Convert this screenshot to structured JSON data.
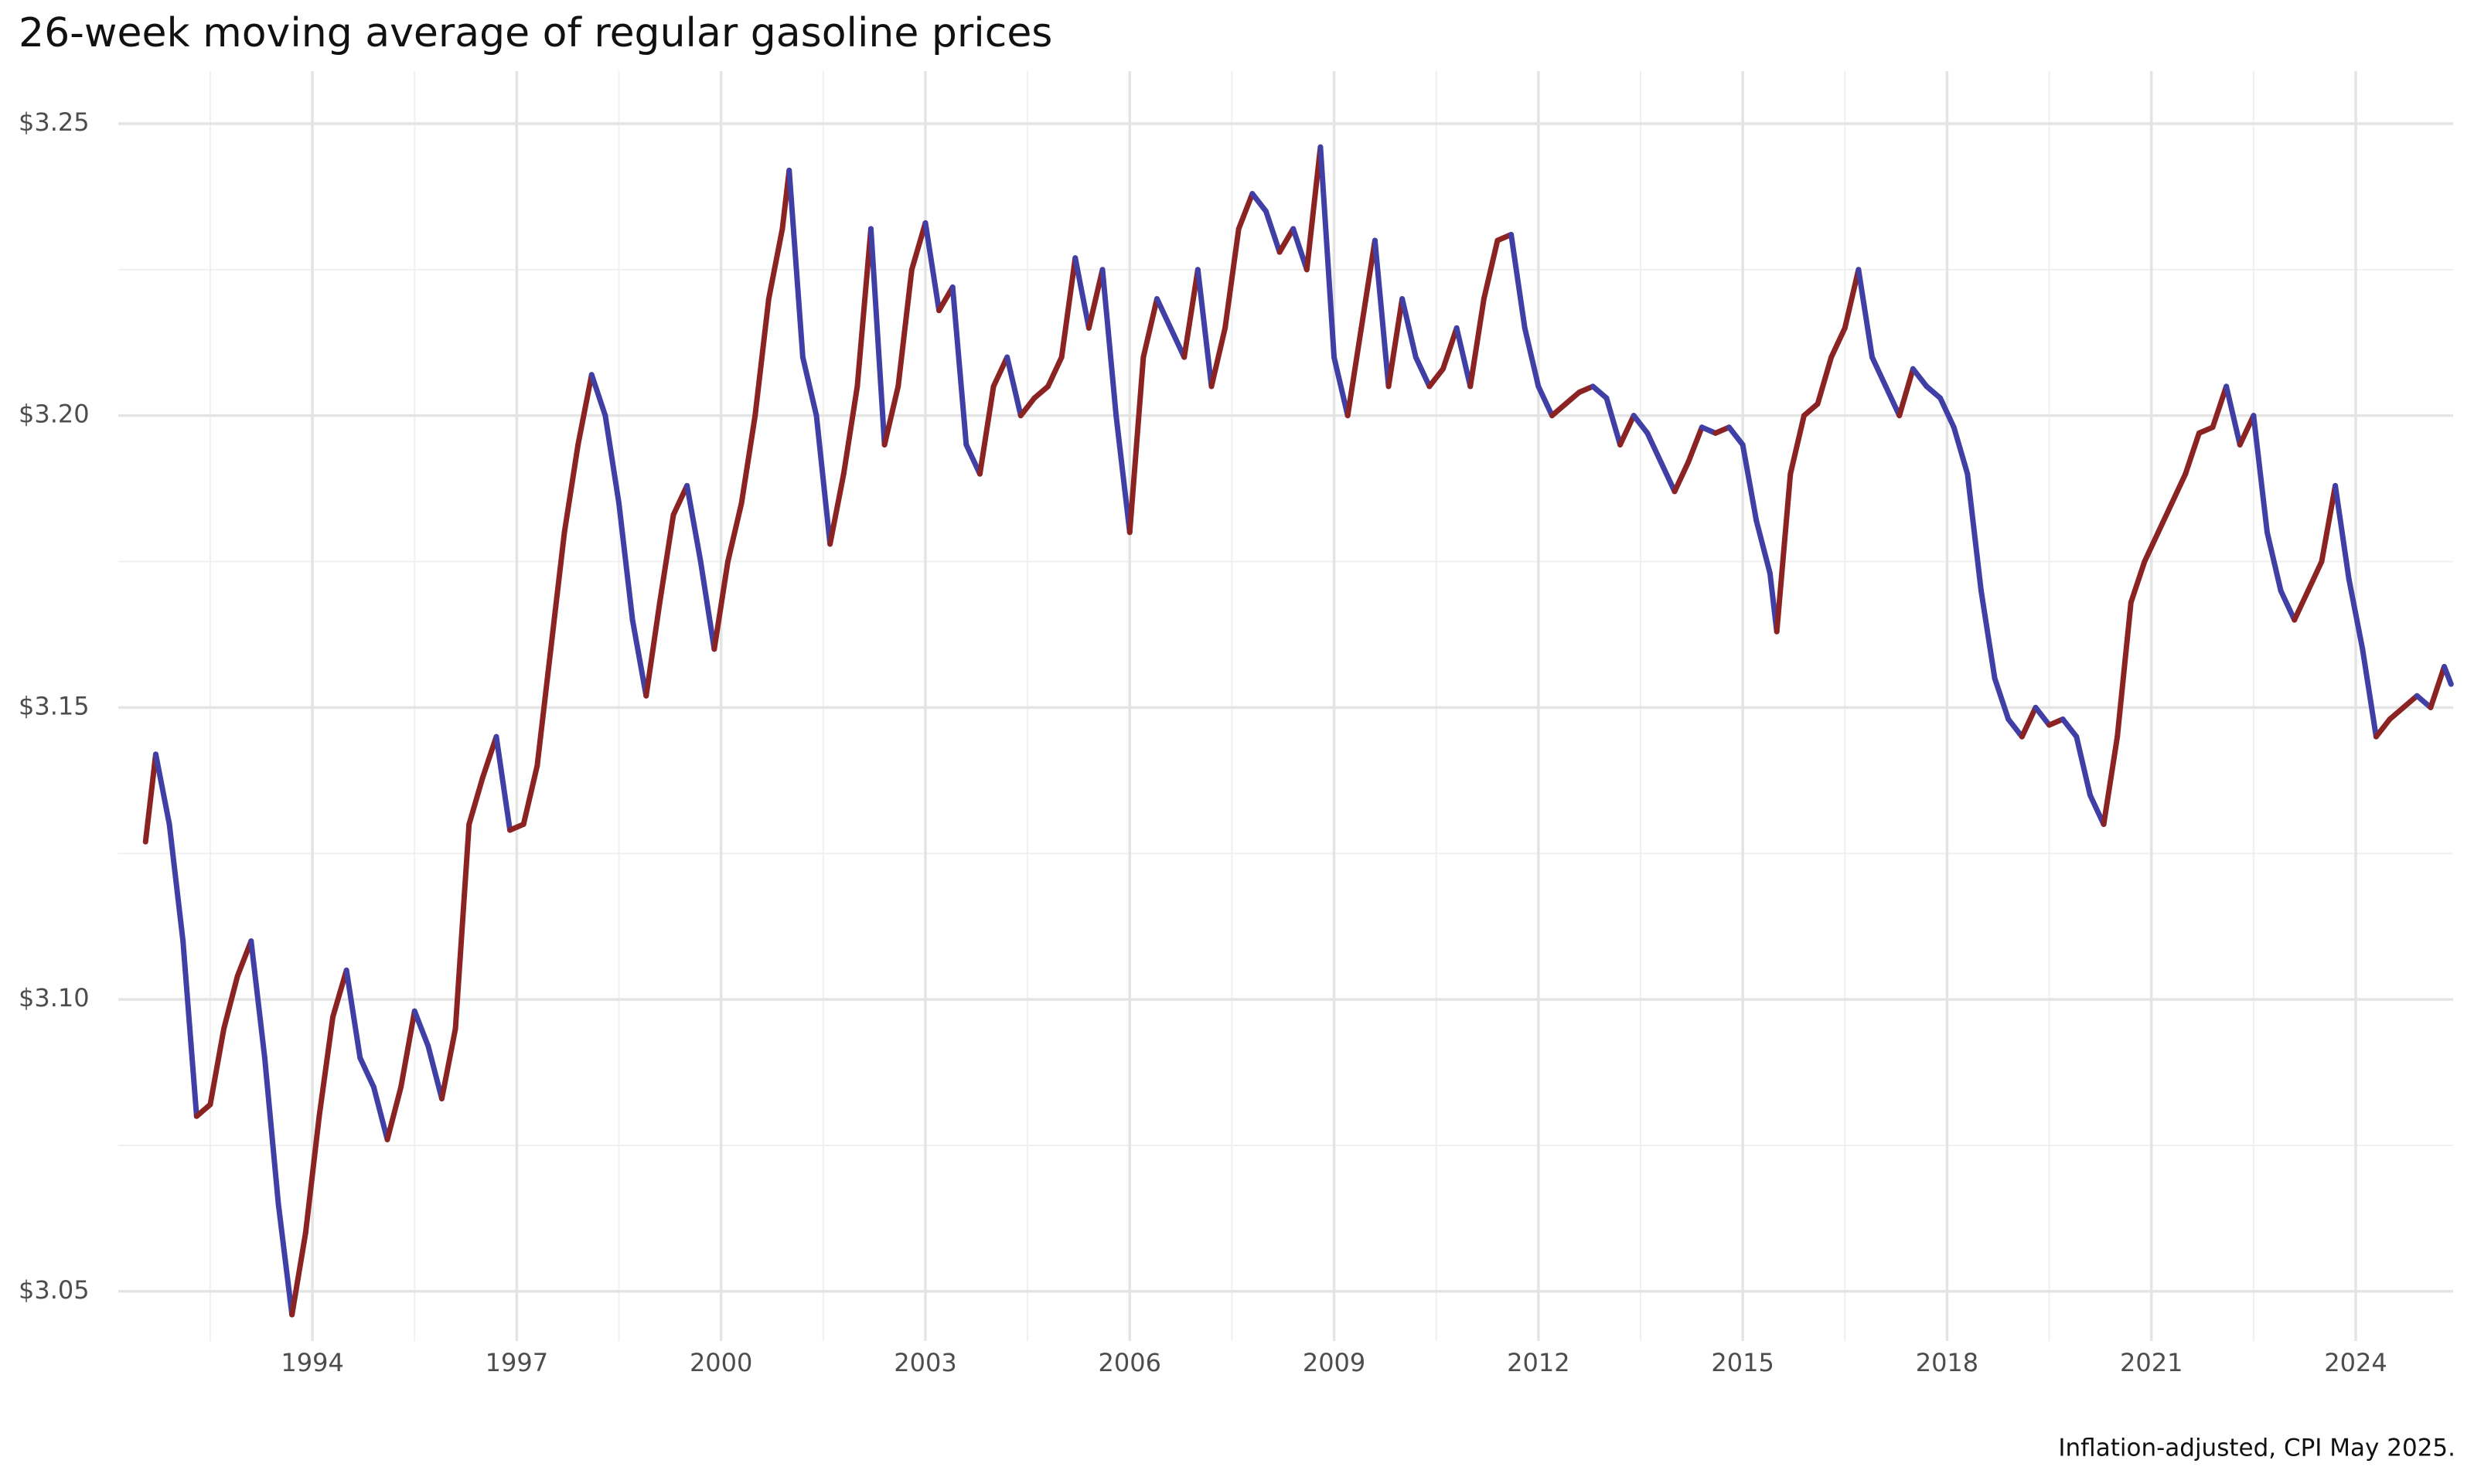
{
  "chart_data": {
    "type": "line",
    "title": "26-week moving average of regular gasoline prices",
    "caption": "Inflation-adjusted, CPI May 2025.",
    "colors": {
      "rising": "#8b2323",
      "falling": "#3f3fa6"
    },
    "grid": true,
    "xlim": [
      1991.15,
      2025.43
    ],
    "xticks": [
      1994,
      1997,
      2000,
      2003,
      2006,
      2009,
      2012,
      2015,
      2018,
      2021,
      2024
    ],
    "ylim": [
      3.0415,
      3.259
    ],
    "yticks": [
      {
        "value": 3.05,
        "label": "$3.05"
      },
      {
        "value": 3.1,
        "label": "$3.10"
      },
      {
        "value": 3.15,
        "label": "$3.15"
      },
      {
        "value": 3.2,
        "label": "$3.20"
      },
      {
        "value": 3.25,
        "label": "$3.25"
      }
    ],
    "x": [
      1991.55,
      1991.7,
      1991.9,
      1992.1,
      1992.3,
      1992.5,
      1992.7,
      1992.9,
      1993.1,
      1993.3,
      1993.5,
      1993.7,
      1993.9,
      1994.1,
      1994.3,
      1994.5,
      1994.7,
      1994.9,
      1995.1,
      1995.3,
      1995.5,
      1995.7,
      1995.9,
      1996.1,
      1996.3,
      1996.5,
      1996.7,
      1996.9,
      1997.1,
      1997.3,
      1997.5,
      1997.7,
      1997.9,
      1998.1,
      1998.3,
      1998.5,
      1998.7,
      1998.9,
      1999.1,
      1999.3,
      1999.5,
      1999.7,
      1999.9,
      2000.1,
      2000.3,
      2000.5,
      2000.7,
      2000.9,
      2001.0,
      2001.2,
      2001.4,
      2001.6,
      2001.8,
      2002.0,
      2002.2,
      2002.4,
      2002.6,
      2002.8,
      2003.0,
      2003.2,
      2003.4,
      2003.6,
      2003.8,
      2004.0,
      2004.2,
      2004.4,
      2004.6,
      2004.8,
      2005.0,
      2005.2,
      2005.4,
      2005.6,
      2005.8,
      2006.0,
      2006.2,
      2006.4,
      2006.6,
      2006.8,
      2007.0,
      2007.2,
      2007.4,
      2007.6,
      2007.8,
      2008.0,
      2008.2,
      2008.4,
      2008.6,
      2008.8,
      2009.0,
      2009.2,
      2009.4,
      2009.6,
      2009.8,
      2010.0,
      2010.2,
      2010.4,
      2010.6,
      2010.8,
      2011.0,
      2011.2,
      2011.4,
      2011.6,
      2011.8,
      2012.0,
      2012.2,
      2012.4,
      2012.6,
      2012.8,
      2013.0,
      2013.2,
      2013.4,
      2013.6,
      2013.8,
      2014.0,
      2014.2,
      2014.4,
      2014.6,
      2014.8,
      2015.0,
      2015.2,
      2015.4,
      2015.5,
      2015.7,
      2015.9,
      2016.1,
      2016.3,
      2016.5,
      2016.7,
      2016.9,
      2017.1,
      2017.3,
      2017.5,
      2017.7,
      2017.9,
      2018.1,
      2018.3,
      2018.5,
      2018.7,
      2018.9,
      2019.1,
      2019.3,
      2019.5,
      2019.7,
      2019.9,
      2020.1,
      2020.3,
      2020.5,
      2020.7,
      2020.9,
      2021.1,
      2021.3,
      2021.5,
      2021.7,
      2021.9,
      2022.1,
      2022.3,
      2022.5,
      2022.7,
      2022.9,
      2023.1,
      2023.3,
      2023.5,
      2023.7,
      2023.9,
      2024.1,
      2024.3,
      2024.5,
      2024.7,
      2024.9,
      2025.1,
      2025.3,
      2025.4
    ],
    "values": [
      3.127,
      3.142,
      3.13,
      3.11,
      3.08,
      3.082,
      3.095,
      3.104,
      3.11,
      3.09,
      3.065,
      3.046,
      3.06,
      3.08,
      3.097,
      3.105,
      3.09,
      3.085,
      3.076,
      3.085,
      3.098,
      3.092,
      3.083,
      3.095,
      3.13,
      3.138,
      3.145,
      3.129,
      3.13,
      3.14,
      3.16,
      3.18,
      3.195,
      3.207,
      3.2,
      3.185,
      3.165,
      3.152,
      3.168,
      3.183,
      3.188,
      3.175,
      3.16,
      3.175,
      3.185,
      3.2,
      3.22,
      3.232,
      3.242,
      3.21,
      3.2,
      3.178,
      3.19,
      3.205,
      3.232,
      3.195,
      3.205,
      3.225,
      3.233,
      3.218,
      3.222,
      3.195,
      3.19,
      3.205,
      3.21,
      3.2,
      3.203,
      3.205,
      3.21,
      3.227,
      3.215,
      3.225,
      3.2,
      3.18,
      3.21,
      3.22,
      3.215,
      3.21,
      3.225,
      3.205,
      3.215,
      3.232,
      3.238,
      3.235,
      3.228,
      3.232,
      3.225,
      3.246,
      3.21,
      3.2,
      3.215,
      3.23,
      3.205,
      3.22,
      3.21,
      3.205,
      3.208,
      3.215,
      3.205,
      3.22,
      3.23,
      3.231,
      3.215,
      3.205,
      3.2,
      3.202,
      3.204,
      3.205,
      3.203,
      3.195,
      3.2,
      3.197,
      3.192,
      3.187,
      3.192,
      3.198,
      3.197,
      3.198,
      3.195,
      3.182,
      3.173,
      3.163,
      3.19,
      3.2,
      3.202,
      3.21,
      3.215,
      3.225,
      3.21,
      3.205,
      3.2,
      3.208,
      3.205,
      3.203,
      3.198,
      3.19,
      3.17,
      3.155,
      3.148,
      3.145,
      3.15,
      3.147,
      3.148,
      3.145,
      3.135,
      3.13,
      3.145,
      3.168,
      3.175,
      3.18,
      3.185,
      3.19,
      3.197,
      3.198,
      3.205,
      3.195,
      3.2,
      3.18,
      3.17,
      3.165,
      3.17,
      3.175,
      3.188,
      3.172,
      3.16,
      3.145,
      3.148,
      3.15,
      3.152,
      3.15,
      3.157,
      3.154
    ]
  }
}
